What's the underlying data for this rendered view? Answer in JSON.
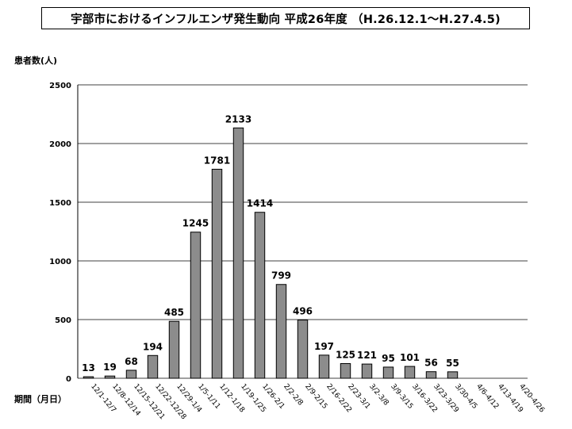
{
  "chart_data": {
    "type": "bar",
    "title": "宇部市におけるインフルエンザ発生動向 平成26年度 （H.26.12.1～H.27.4.5)",
    "ylabel": "患者数(人)",
    "xlabel": "期間（月日）",
    "ylim": [
      0,
      2500
    ],
    "yticks": [
      0,
      500,
      1000,
      1500,
      2000,
      2500
    ],
    "grid": true,
    "bar_color": "#8c8c8c",
    "bar_edge_color": "#000000",
    "categories": [
      "12/1-12/7",
      "12/8-12/14",
      "12/15-12/21",
      "12/22-12/28",
      "12/29-1/4",
      "1/5-1/11",
      "1/12-1/18",
      "1/19-1/25",
      "1/26-2/1",
      "2/2-2/8",
      "2/9-2/15",
      "2/16-2/22",
      "2/23-3/1",
      "3/2-3/8",
      "3/9-3/15",
      "3/16-3/22",
      "3/23-3/29",
      "3/30-4/5",
      "4/6-4/12",
      "4/13-4/19",
      "4/20-4/26"
    ],
    "values": [
      13,
      19,
      68,
      194,
      485,
      1245,
      1781,
      2133,
      1414,
      799,
      496,
      197,
      125,
      121,
      95,
      101,
      56,
      55,
      null,
      null,
      null
    ]
  }
}
